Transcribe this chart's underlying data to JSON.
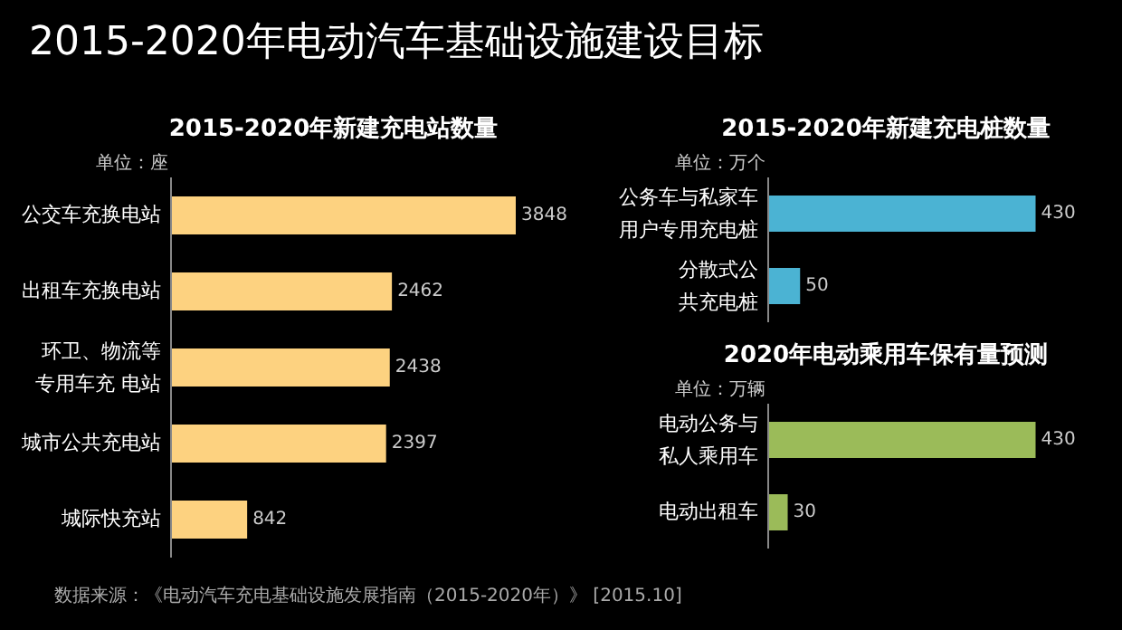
{
  "chart_data": [
    {
      "type": "other",
      "title": "2015-2020年电动汽车基础设施建设目标",
      "annotations": [
        "数据来源：《电动汽车充电基础设施发展指南（2015-2020年）》 [2015.10]"
      ]
    },
    {
      "type": "bar",
      "orientation": "horizontal",
      "title": "2015-2020年新建充电站数量",
      "ylabel": "单位：座",
      "categories": [
        "公交车充换电站",
        "出租车充换电站",
        "环卫、物流等专用车充 电站",
        "城市公共充电站",
        "城际快充站"
      ],
      "values": [
        3848,
        2462,
        2438,
        2397,
        842
      ],
      "color": "#fdd280",
      "data_labels": true,
      "tick_labels": "y"
    },
    {
      "type": "bar",
      "orientation": "horizontal",
      "title": "2015-2020年新建充电桩数量",
      "ylabel": "单位：万个",
      "categories": [
        "公务车与私家车用户专用充电桩",
        "分散式公共充电桩"
      ],
      "values": [
        430,
        50
      ],
      "color": "#4bb3d3",
      "data_labels": true,
      "tick_labels": "y"
    },
    {
      "type": "bar",
      "orientation": "horizontal",
      "title": "2020年电动乘用车保有量预测",
      "ylabel": "单位：万辆",
      "categories": [
        "电动公务与私人乘用车",
        "电动出租车"
      ],
      "values": [
        430,
        30
      ],
      "color": "#9bbb59",
      "data_labels": true,
      "tick_labels": "y"
    }
  ]
}
